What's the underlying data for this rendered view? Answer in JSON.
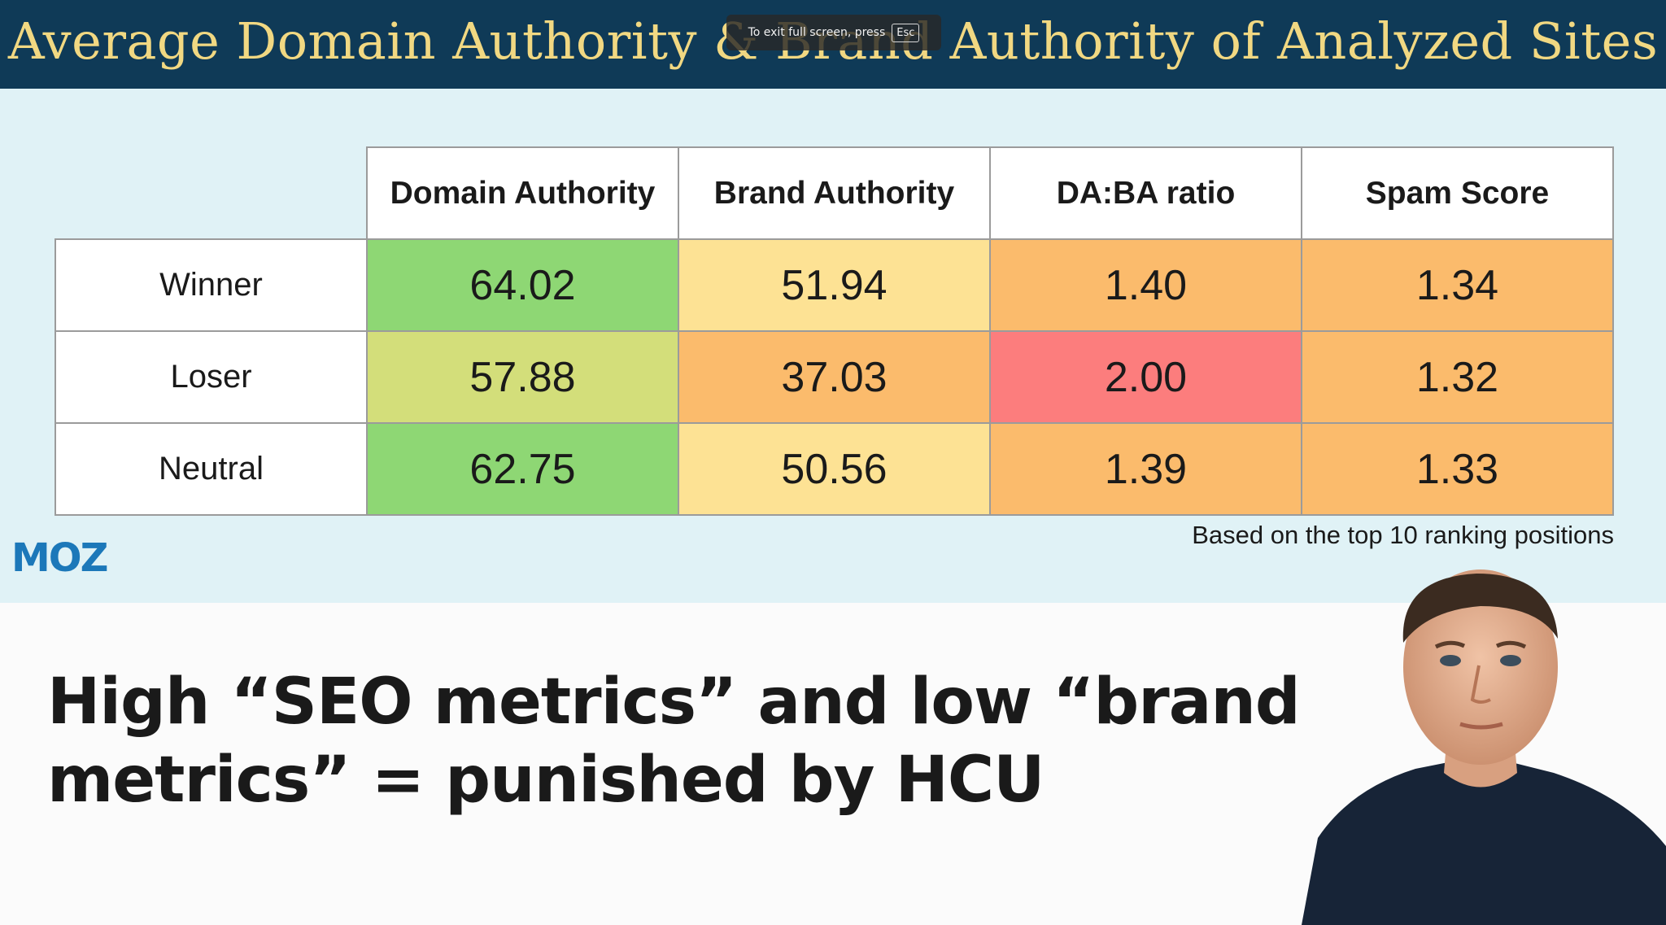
{
  "slide": {
    "title": "Average Domain Authority & Brand Authority of Analyzed Sites",
    "table": {
      "columns": [
        "Domain Authority",
        "Brand Authority",
        "DA:BA ratio",
        "Spam Score"
      ],
      "rows": [
        {
          "label": "Winner",
          "values": [
            "64.02",
            "51.94",
            "1.40",
            "1.34"
          ]
        },
        {
          "label": "Loser",
          "values": [
            "57.88",
            "37.03",
            "2.00",
            "1.32"
          ]
        },
        {
          "label": "Neutral",
          "values": [
            "62.75",
            "50.56",
            "1.39",
            "1.33"
          ]
        }
      ]
    },
    "footnote": "Based on the top 10 ranking positions",
    "logo_text": "MOZ"
  },
  "overlay": {
    "message": "To exit full screen, press",
    "key": "Esc"
  },
  "caption": {
    "headline": "High “SEO metrics” and low “brand metrics” = punished by HCU"
  },
  "colors": {
    "title_bar": "#0f3a57",
    "title_text": "#f1d882",
    "panel": "#e0f2f6",
    "green": "#8ed774",
    "yellow_green": "#d3de7a",
    "light_yellow": "#fde294",
    "orange": "#fbbb6c",
    "red": "#fc7d7d",
    "moz_blue": "#1c78b9"
  },
  "cell_colors": [
    [
      "green",
      "light_yellow",
      "orange",
      "orange"
    ],
    [
      "yellow_green",
      "orange",
      "red",
      "orange"
    ],
    [
      "green",
      "light_yellow",
      "orange",
      "orange"
    ]
  ],
  "speaker": {
    "icon": "speaker-photo"
  }
}
